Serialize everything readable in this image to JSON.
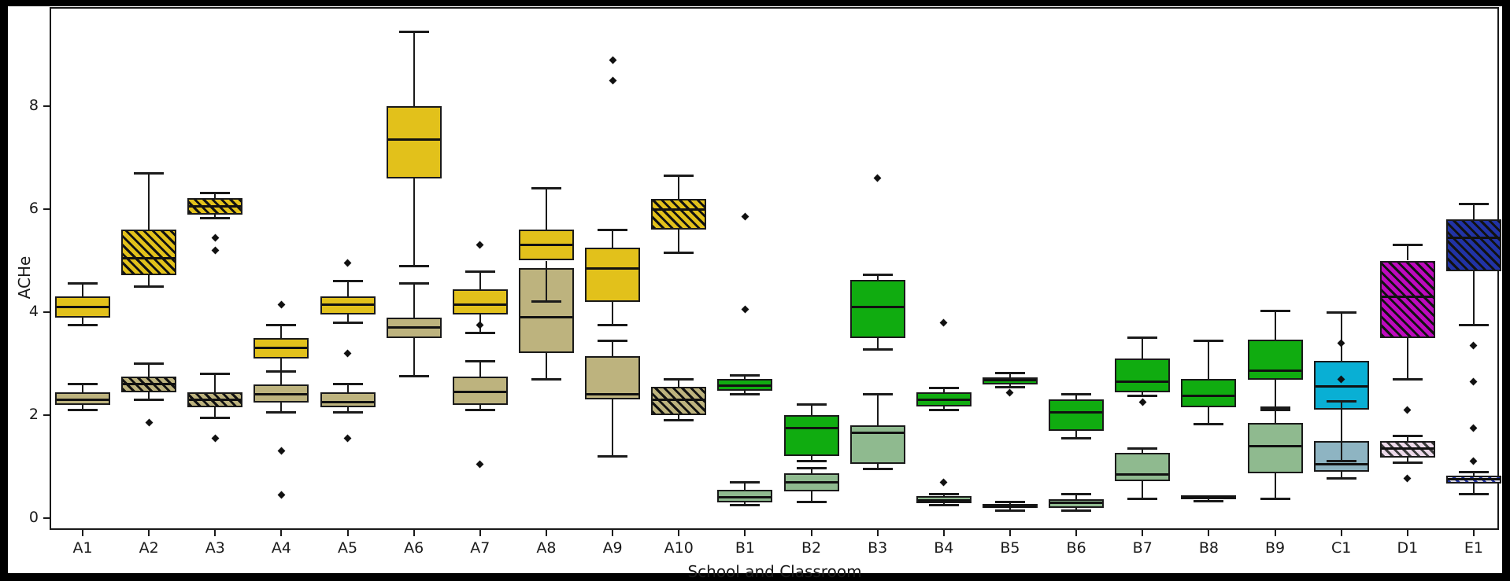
{
  "chart_data": {
    "type": "boxplot",
    "title": "",
    "xlabel": "School and Classroom",
    "ylabel": "ACHe",
    "yticks": [
      0,
      2,
      4,
      6,
      8
    ],
    "ylim": [
      -0.25,
      9.9
    ],
    "grid": false,
    "legend": null,
    "line_color": "#1a1a1a",
    "palette": {
      "A": {
        "primary": "#E2C11B",
        "secondary": "#BDB37E"
      },
      "B": {
        "primary": "#10AC10",
        "secondary": "#8FBA8F"
      },
      "C": {
        "primary": "#09AFD4",
        "secondary": "#8EB4C2"
      },
      "D": {
        "primary": "#BE0ABE",
        "secondary": "#ECD9E9"
      },
      "E": {
        "primary": "#2133A5",
        "secondary": "#DEDEEB"
      }
    },
    "hatched_categories": [
      "A2",
      "A3",
      "A10",
      "D1",
      "E1"
    ],
    "hatch_colors": {
      "default": "#111111",
      "D1_secondary": "#3a3a3a",
      "E1_secondary": "#2133A5"
    },
    "categories": [
      "A1",
      "A2",
      "A3",
      "A4",
      "A5",
      "A6",
      "A7",
      "A8",
      "A9",
      "A10",
      "B1",
      "B2",
      "B3",
      "B4",
      "B5",
      "B6",
      "B7",
      "B8",
      "B9",
      "C1",
      "D1",
      "E1"
    ],
    "boxes": [
      {
        "category": "A1",
        "school": "A",
        "primary": {
          "whislo": 3.75,
          "q1": 3.9,
          "med": 4.1,
          "q3": 4.3,
          "whishi": 4.55,
          "fliers": []
        },
        "secondary": {
          "whislo": 2.1,
          "q1": 2.2,
          "med": 2.3,
          "q3": 2.45,
          "whishi": 2.6,
          "fliers": []
        }
      },
      {
        "category": "A2",
        "school": "A",
        "primary": {
          "whislo": 4.5,
          "q1": 4.72,
          "med": 5.05,
          "q3": 5.6,
          "whishi": 6.7,
          "fliers": []
        },
        "secondary": {
          "whislo": 2.3,
          "q1": 2.45,
          "med": 2.6,
          "q3": 2.75,
          "whishi": 3.0,
          "fliers": [
            1.85
          ]
        }
      },
      {
        "category": "A3",
        "school": "A",
        "primary": {
          "whislo": 5.83,
          "q1": 5.9,
          "med": 6.05,
          "q3": 6.22,
          "whishi": 6.32,
          "fliers": [
            5.45,
            5.2
          ]
        },
        "secondary": {
          "whislo": 1.95,
          "q1": 2.15,
          "med": 2.3,
          "q3": 2.45,
          "whishi": 2.8,
          "fliers": [
            1.55
          ]
        }
      },
      {
        "category": "A4",
        "school": "A",
        "primary": {
          "whislo": 2.85,
          "q1": 3.1,
          "med": 3.3,
          "q3": 3.5,
          "whishi": 3.75,
          "fliers": [
            4.15
          ]
        },
        "secondary": {
          "whislo": 2.05,
          "q1": 2.25,
          "med": 2.4,
          "q3": 2.6,
          "whishi": 2.85,
          "fliers": [
            1.3,
            0.45
          ]
        }
      },
      {
        "category": "A5",
        "school": "A",
        "primary": {
          "whislo": 3.8,
          "q1": 3.95,
          "med": 4.15,
          "q3": 4.3,
          "whishi": 4.6,
          "fliers": [
            4.95
          ]
        },
        "secondary": {
          "whislo": 2.05,
          "q1": 2.15,
          "med": 2.25,
          "q3": 2.45,
          "whishi": 2.6,
          "fliers": [
            3.2,
            1.55
          ]
        }
      },
      {
        "category": "A6",
        "school": "A",
        "primary": {
          "whislo": 4.9,
          "q1": 6.6,
          "med": 7.35,
          "q3": 8.0,
          "whishi": 9.45,
          "fliers": []
        },
        "secondary": {
          "whislo": 2.75,
          "q1": 3.5,
          "med": 3.7,
          "q3": 3.9,
          "whishi": 4.55,
          "fliers": []
        }
      },
      {
        "category": "A7",
        "school": "A",
        "primary": {
          "whislo": 3.6,
          "q1": 3.95,
          "med": 4.15,
          "q3": 4.45,
          "whishi": 4.78,
          "fliers": [
            5.3
          ]
        },
        "secondary": {
          "whislo": 2.1,
          "q1": 2.2,
          "med": 2.45,
          "q3": 2.75,
          "whishi": 3.05,
          "fliers": [
            3.75,
            1.05
          ]
        }
      },
      {
        "category": "A8",
        "school": "A",
        "primary": {
          "whislo": 4.2,
          "q1": 5.0,
          "med": 5.3,
          "q3": 5.6,
          "whishi": 6.4,
          "fliers": []
        },
        "secondary": {
          "whislo": 2.7,
          "q1": 3.2,
          "med": 3.9,
          "q3": 4.85,
          "whishi": 4.85,
          "fliers": []
        }
      },
      {
        "category": "A9",
        "school": "A",
        "primary": {
          "whislo": 3.75,
          "q1": 4.2,
          "med": 4.85,
          "q3": 5.25,
          "whishi": 5.6,
          "fliers": [
            8.9,
            8.5
          ]
        },
        "secondary": {
          "whislo": 1.2,
          "q1": 2.3,
          "med": 2.4,
          "q3": 3.15,
          "whishi": 3.45,
          "fliers": []
        }
      },
      {
        "category": "A10",
        "school": "A",
        "primary": {
          "whislo": 5.15,
          "q1": 5.6,
          "med": 6.0,
          "q3": 6.2,
          "whishi": 6.65,
          "fliers": []
        },
        "secondary": {
          "whislo": 1.9,
          "q1": 2.0,
          "med": 2.3,
          "q3": 2.55,
          "whishi": 2.7,
          "fliers": []
        }
      },
      {
        "category": "B1",
        "school": "B",
        "primary": {
          "whislo": 2.4,
          "q1": 2.48,
          "med": 2.58,
          "q3": 2.7,
          "whishi": 2.77,
          "fliers": [
            5.85,
            4.05
          ]
        },
        "secondary": {
          "whislo": 0.25,
          "q1": 0.3,
          "med": 0.4,
          "q3": 0.55,
          "whishi": 0.7,
          "fliers": []
        }
      },
      {
        "category": "B2",
        "school": "B",
        "primary": {
          "whislo": 1.1,
          "q1": 1.2,
          "med": 1.75,
          "q3": 2.0,
          "whishi": 2.2,
          "fliers": []
        },
        "secondary": {
          "whislo": 0.32,
          "q1": 0.52,
          "med": 0.7,
          "q3": 0.87,
          "whishi": 0.97,
          "fliers": []
        }
      },
      {
        "category": "B3",
        "school": "B",
        "primary": {
          "whislo": 3.27,
          "q1": 3.5,
          "med": 4.1,
          "q3": 4.62,
          "whishi": 4.72,
          "fliers": [
            6.6
          ]
        },
        "secondary": {
          "whislo": 0.95,
          "q1": 1.05,
          "med": 1.65,
          "q3": 1.8,
          "whishi": 2.4,
          "fliers": []
        }
      },
      {
        "category": "B4",
        "school": "B",
        "primary": {
          "whislo": 2.1,
          "q1": 2.17,
          "med": 2.3,
          "q3": 2.44,
          "whishi": 2.52,
          "fliers": [
            3.8
          ]
        },
        "secondary": {
          "whislo": 0.25,
          "q1": 0.29,
          "med": 0.35,
          "q3": 0.42,
          "whishi": 0.47,
          "fliers": [
            0.7
          ]
        }
      },
      {
        "category": "B5",
        "school": "B",
        "primary": {
          "whislo": 2.54,
          "q1": 2.6,
          "med": 2.68,
          "q3": 2.74,
          "whishi": 2.82,
          "fliers": [
            2.44
          ]
        },
        "secondary": {
          "whislo": 0.15,
          "q1": 0.2,
          "med": 0.22,
          "q3": 0.28,
          "whishi": 0.32,
          "fliers": []
        }
      },
      {
        "category": "B6",
        "school": "B",
        "primary": {
          "whislo": 1.55,
          "q1": 1.7,
          "med": 2.05,
          "q3": 2.3,
          "whishi": 2.4,
          "fliers": []
        },
        "secondary": {
          "whislo": 0.14,
          "q1": 0.2,
          "med": 0.3,
          "q3": 0.37,
          "whishi": 0.47,
          "fliers": []
        }
      },
      {
        "category": "B7",
        "school": "B",
        "primary": {
          "whislo": 2.38,
          "q1": 2.44,
          "med": 2.65,
          "q3": 3.1,
          "whishi": 3.5,
          "fliers": [
            2.25
          ]
        },
        "secondary": {
          "whislo": 0.38,
          "q1": 0.72,
          "med": 0.85,
          "q3": 1.27,
          "whishi": 1.35,
          "fliers": []
        }
      },
      {
        "category": "B8",
        "school": "B",
        "primary": {
          "whislo": 1.82,
          "q1": 2.15,
          "med": 2.38,
          "q3": 2.7,
          "whishi": 3.45,
          "fliers": []
        },
        "secondary": {
          "whislo": 0.33,
          "q1": 0.37,
          "med": 0.4,
          "q3": 0.44,
          "whishi": 0.47,
          "fliers": []
        }
      },
      {
        "category": "B9",
        "school": "B",
        "primary": {
          "whislo": 2.15,
          "q1": 2.68,
          "med": 2.86,
          "q3": 3.47,
          "whishi": 4.03,
          "fliers": []
        },
        "secondary": {
          "whislo": 0.38,
          "q1": 0.87,
          "med": 1.4,
          "q3": 1.85,
          "whishi": 2.1,
          "fliers": []
        }
      },
      {
        "category": "C1",
        "school": "C",
        "primary": {
          "whislo": 1.1,
          "q1": 2.1,
          "med": 2.55,
          "q3": 3.05,
          "whishi": 4.0,
          "fliers": []
        },
        "secondary": {
          "whislo": 0.77,
          "q1": 0.9,
          "med": 1.05,
          "q3": 1.5,
          "whishi": 2.27,
          "fliers": [
            3.4,
            2.7
          ]
        }
      },
      {
        "category": "D1",
        "school": "D",
        "primary": {
          "whislo": 2.7,
          "q1": 3.5,
          "med": 4.3,
          "q3": 5.0,
          "whishi": 5.3,
          "fliers": []
        },
        "secondary": {
          "whislo": 1.08,
          "q1": 1.18,
          "med": 1.35,
          "q3": 1.5,
          "whishi": 1.6,
          "fliers": [
            2.1,
            0.77
          ]
        }
      },
      {
        "category": "E1",
        "school": "E",
        "primary": {
          "whislo": 3.75,
          "q1": 4.8,
          "med": 5.45,
          "q3": 5.8,
          "whishi": 6.1,
          "fliers": [
            3.35,
            2.65,
            1.75
          ]
        },
        "secondary": {
          "whislo": 0.47,
          "q1": 0.67,
          "med": 0.75,
          "q3": 0.82,
          "whishi": 0.9,
          "fliers": [
            1.1
          ]
        }
      }
    ]
  }
}
